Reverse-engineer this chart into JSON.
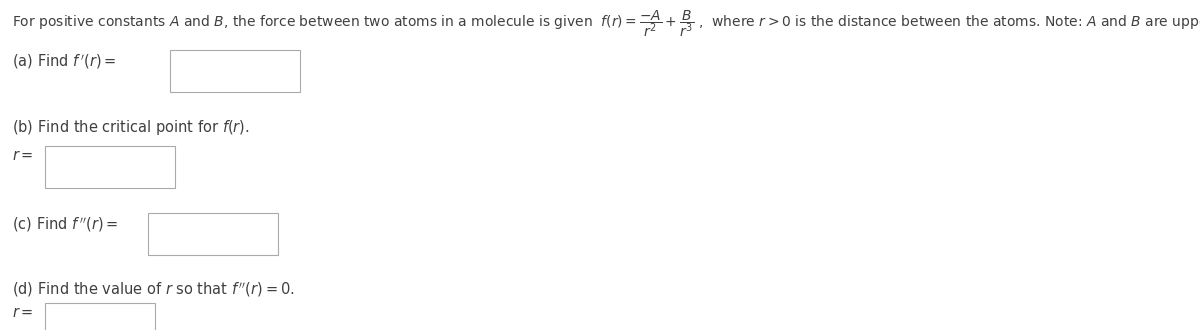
{
  "background_color": "#ffffff",
  "text_color": "#404040",
  "header_text": "For positive constants $A$ and $B$, the force between two atoms in a molecule is given  $f(r) = \\dfrac{-A}{r^2} + \\dfrac{B}{r^3}$ ,  where $r > 0$ is the distance between the atoms. Note: $A$ and $B$ are upper case letters.",
  "part_a_label": "(a) Find $f\\,'(r) =$",
  "part_b_label": "(b) Find the critical point for $f(r)$.",
  "part_b_sub": "$r =$",
  "part_c_label": "(c) Find $f\\,''(r) =$",
  "part_d_label": "(d) Find the value of $r$ so that $f\\,''(r) = 0$.",
  "part_d_sub": "$r =$",
  "box_edge_color": "#aaaaaa",
  "box_fill": "#ffffff",
  "font_size_header": 10.0,
  "font_size_parts": 10.5
}
